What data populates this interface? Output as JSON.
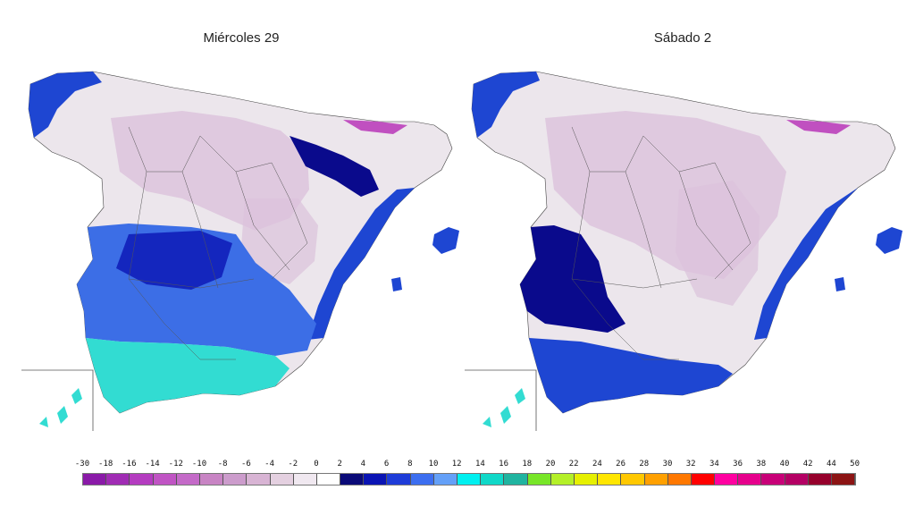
{
  "maps": [
    {
      "title": "Miércoles 29"
    },
    {
      "title": "Sábado 2"
    }
  ],
  "legend": {
    "ticks": [
      "-30",
      "-18",
      "-16",
      "-14",
      "-12",
      "-10",
      "-8",
      "-6",
      "-4",
      "-2",
      "0",
      "2",
      "4",
      "6",
      "8",
      "10",
      "12",
      "14",
      "16",
      "18",
      "20",
      "22",
      "24",
      "26",
      "28",
      "30",
      "32",
      "34",
      "36",
      "38",
      "40",
      "42",
      "44",
      "50"
    ],
    "colors": [
      "#8a1aa8",
      "#a02cb4",
      "#b43cc0",
      "#c054c4",
      "#c46ac8",
      "#c884c4",
      "#cc9ccc",
      "#d8b4d4",
      "#e4d0e0",
      "#f0e8f0",
      "#ffffff",
      "#0a0a78",
      "#0a14b4",
      "#1e3cd8",
      "#3c6ef0",
      "#64a0f8",
      "#00f0f0",
      "#10d8c8",
      "#20b4a0",
      "#78e628",
      "#b4f028",
      "#e6f000",
      "#ffe600",
      "#ffc800",
      "#ffa000",
      "#ff7800",
      "#ff0000",
      "#ff00a0",
      "#e6008c",
      "#c80078",
      "#b40064",
      "#96002c",
      "#8c1414"
    ]
  },
  "colors": {
    "land_neutral": "#ece6ec",
    "land_pink": "#dcc2dc",
    "land_magenta": "#c050c0",
    "blue_dark": "#0a0a8c",
    "blue_mid": "#1e46d2",
    "blue_light": "#3c6ee6",
    "cyan": "#32dcd2",
    "border": "#555555"
  }
}
